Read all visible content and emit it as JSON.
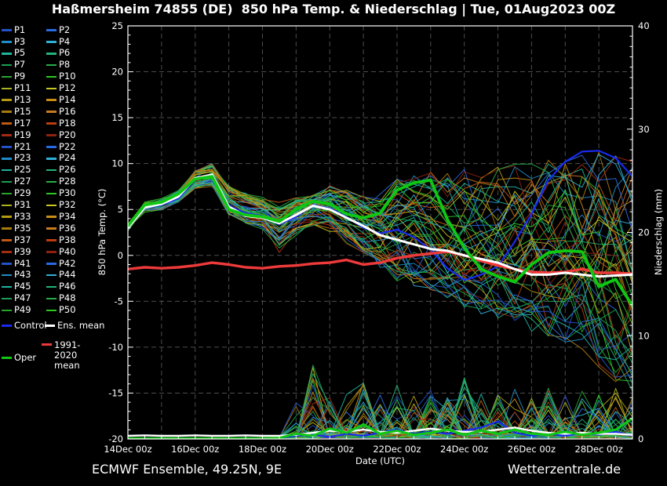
{
  "title": "Haßmersheim 74855 (DE)  850 hPa Temp. & Niederschlag | Tue, 01Aug2023 00Z",
  "footer": {
    "left_text": "ECMWF Ensemble, 49.25N, 9E",
    "right_text": "Wetterzentrale.de"
  },
  "legend": {
    "members": [
      "P1",
      "P2",
      "P3",
      "P4",
      "P5",
      "P6",
      "P7",
      "P8",
      "P9",
      "P10",
      "P11",
      "P12",
      "P13",
      "P14",
      "P15",
      "P16",
      "P17",
      "P18",
      "P19",
      "P20",
      "P21",
      "P22",
      "P23",
      "P24",
      "P25",
      "P26",
      "P27",
      "P28",
      "P29",
      "P30",
      "P31",
      "P32",
      "P33",
      "P34",
      "P35",
      "P36",
      "P37",
      "P38",
      "P39",
      "P40",
      "P41",
      "P42",
      "P43",
      "P44",
      "P45",
      "P46",
      "P47",
      "P48",
      "P49",
      "P50"
    ],
    "special": [
      {
        "label": "Control",
        "color": "#1a2aee"
      },
      {
        "label": "Ens. mean",
        "color": "#ffffff"
      },
      {
        "label": "1991-2020 mean",
        "color": "#ee3a3a"
      },
      {
        "label": "Oper",
        "color": "#0fc814"
      }
    ]
  },
  "chart_data": {
    "type": "line",
    "title": "Haßmersheim 74855 (DE)  850 hPa Temp. & Niederschlag | Tue, 01Aug2023 00Z",
    "x": {
      "label": "Date (UTC)",
      "start": "14Dec 00z",
      "end": "29Dec 00z",
      "step_hours": 12,
      "days_span": 15,
      "tick_labels": [
        "14Dec 00z",
        "16Dec 00z",
        "18Dec 00z",
        "20Dec 00z",
        "22Dec 00z",
        "24Dec 00z",
        "26Dec 00z",
        "28Dec 00z"
      ],
      "tick_day_offsets": [
        0,
        2,
        4,
        6,
        8,
        10,
        12,
        14
      ]
    },
    "y_left": {
      "label": "850 hPa Temp. (°C)",
      "min": -20,
      "max": 25,
      "major_step": 5,
      "minor_step": 1,
      "tick_labels": [
        "25",
        "20",
        "15",
        "10",
        "5",
        "0",
        "-5",
        "-10",
        "-15",
        "-20"
      ]
    },
    "y_right": {
      "label": "Niederschlag (mm)",
      "min": 0,
      "max": 40,
      "major_step": 10,
      "minor_step": 1,
      "tick_labels": [
        "0",
        "10",
        "20",
        "30",
        "40"
      ]
    },
    "grid": {
      "h_step_deg": 5,
      "v_step_days": 1,
      "color": "#4d4d4d"
    },
    "n_members": 50,
    "colors": {
      "control": "#1a2aee",
      "ens_mean": "#ffffff",
      "oper": "#0fc814",
      "climate_mean": "#ee3a3a",
      "members_palette": [
        "#2452c8",
        "#2a6ae0",
        "#1f8cc8",
        "#2fb0d8",
        "#1fb4a0",
        "#22b478",
        "#1c9e52",
        "#28ac48",
        "#28a42e",
        "#2cc822",
        "#aab422",
        "#c8c822",
        "#b49a12",
        "#c88e14",
        "#a87a10",
        "#c87c20",
        "#c05a14",
        "#bc3c10",
        "#a42c10",
        "#8e2210"
      ]
    },
    "series": {
      "ens_mean_temp": [
        3.0,
        5.2,
        5.6,
        6.4,
        8.4,
        8.8,
        5.3,
        4.3,
        4.1,
        3.5,
        4.4,
        5.4,
        5.0,
        4.1,
        3.2,
        2.2,
        1.7,
        1.2,
        0.7,
        0.5,
        0.0,
        -0.4,
        -0.8,
        -1.5,
        -2.1,
        -2.1,
        -1.9,
        -2.1,
        -2.3,
        -2.2,
        -2.1
      ],
      "control_temp": [
        3.0,
        5.1,
        5.5,
        6.2,
        8.2,
        8.6,
        5.4,
        4.6,
        4.3,
        3.4,
        4.2,
        5.5,
        5.1,
        4.2,
        3.0,
        2.4,
        2.8,
        2.0,
        0.6,
        -1.4,
        -2.7,
        -2.1,
        -1.2,
        1.5,
        4.5,
        8.2,
        10.2,
        11.3,
        11.4,
        10.6,
        8.6
      ],
      "oper_temp": [
        3.2,
        5.5,
        5.8,
        6.7,
        8.3,
        8.6,
        5.0,
        4.4,
        4.2,
        3.7,
        5.0,
        5.9,
        5.6,
        4.5,
        4.1,
        4.6,
        7.1,
        7.9,
        8.2,
        3.9,
        0.8,
        -1.5,
        -2.3,
        -2.9,
        -1.0,
        0.3,
        0.5,
        0.4,
        -3.4,
        -2.6,
        -5.5
      ],
      "climate_mean_temp": [
        -1.5,
        -1.3,
        -1.4,
        -1.3,
        -1.1,
        -0.8,
        -1.0,
        -1.3,
        -1.4,
        -1.2,
        -1.1,
        -0.9,
        -0.8,
        -0.5,
        -1.0,
        -0.8,
        -0.3,
        0.0,
        0.2,
        0.4,
        0.0,
        -0.6,
        -1.1,
        -1.5,
        -1.8,
        -1.9,
        -1.8,
        -1.5,
        -1.9,
        -1.9,
        -2.0
      ],
      "member_temp_envelope_min": [
        2.5,
        4.6,
        5.0,
        5.8,
        7.4,
        7.6,
        4.5,
        3.6,
        3.0,
        0.6,
        2.4,
        3.4,
        2.8,
        1.4,
        0.2,
        -1.0,
        -2.2,
        -3.0,
        -3.4,
        -4.0,
        -5.0,
        -5.6,
        -6.2,
        -6.8,
        -7.4,
        -8.0,
        -8.6,
        -9.6,
        -11.5,
        -12.5,
        -13.5
      ],
      "member_temp_envelope_max": [
        3.6,
        5.8,
        6.2,
        7.0,
        9.2,
        9.9,
        7.6,
        6.6,
        6.2,
        5.6,
        6.2,
        6.8,
        7.4,
        7.0,
        6.6,
        6.6,
        7.8,
        8.4,
        8.6,
        8.2,
        8.6,
        8.2,
        8.8,
        9.0,
        9.2,
        9.4,
        9.8,
        10.2,
        10.4,
        10.0,
        9.6
      ],
      "ens_mean_precip": [
        0.3,
        0.35,
        0.3,
        0.3,
        0.35,
        0.3,
        0.3,
        0.35,
        0.3,
        0.3,
        0.4,
        0.6,
        0.8,
        0.7,
        0.9,
        0.7,
        0.6,
        0.8,
        1.0,
        0.8,
        0.7,
        0.7,
        0.9,
        1.1,
        0.8,
        0.6,
        0.5,
        0.6,
        0.5,
        0.5,
        0.4
      ],
      "control_precip": [
        0,
        0,
        0,
        0,
        0,
        0,
        0,
        0,
        0,
        0.1,
        0.3,
        0.4,
        0.2,
        0.5,
        0.3,
        0.6,
        0.9,
        0.5,
        0.7,
        0.5,
        0.8,
        1.1,
        1.7,
        0.6,
        0.3,
        0.5,
        0.3,
        0.6,
        0.4,
        0.7,
        0.3
      ],
      "oper_precip": [
        0.05,
        0.05,
        0.05,
        0.05,
        0.05,
        0.05,
        0.05,
        0.05,
        0.05,
        0.1,
        0.5,
        0.3,
        1.0,
        0.6,
        1.4,
        0.5,
        0.8,
        0.4,
        0.6,
        0.9,
        0.4,
        0.8,
        0.5,
        0.9,
        0.5,
        0.4,
        0.7,
        0.4,
        0.6,
        0.9,
        2.0
      ],
      "member_precip_max": [
        0.1,
        0.1,
        0.1,
        0.1,
        0.1,
        0.1,
        0.1,
        0.15,
        0.15,
        0.2,
        3.5,
        7.5,
        4.0,
        4.5,
        5.5,
        4.5,
        5.5,
        4.5,
        5.0,
        4.5,
        6.0,
        5.0,
        4.5,
        5.5,
        4.0,
        5.0,
        4.5,
        5.0,
        4.5,
        5.0,
        4.0
      ]
    }
  }
}
